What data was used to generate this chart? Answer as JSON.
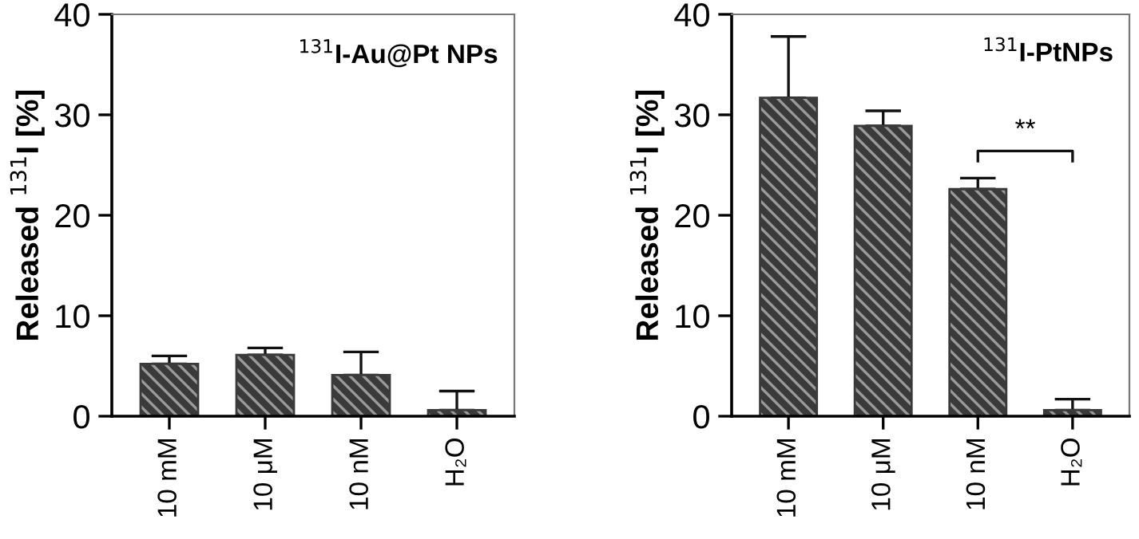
{
  "chart_data": [
    {
      "type": "bar",
      "title": "$^{131}$I-Au@Pt NPs",
      "ylabel": "Released $^{131}$I [%]",
      "categories": [
        "10 mM",
        "10 μM",
        "10 nM",
        "H₂O"
      ],
      "values": [
        5.2,
        6.1,
        4.1,
        0.6
      ],
      "errors": [
        [
          5.2,
          6.0
        ],
        [
          6.1,
          6.8
        ],
        [
          4.1,
          6.4
        ],
        [
          0.6,
          2.5
        ]
      ],
      "color": "#3a3a3a",
      "ylim": [
        0,
        40
      ],
      "yticks": [
        0,
        10,
        20,
        30,
        40
      ],
      "grid": false
    },
    {
      "type": "bar",
      "title": "$^{131}$I-PtNPs",
      "ylabel": "Released $^{131}$I [%]",
      "categories": [
        "10 mM",
        "10 μM",
        "10 nM",
        "H₂O"
      ],
      "values": [
        31.7,
        28.9,
        22.6,
        0.6
      ],
      "errors": [
        [
          31.7,
          37.8
        ],
        [
          28.9,
          30.4
        ],
        [
          22.6,
          23.7
        ],
        [
          0.6,
          1.7
        ]
      ],
      "color": "#3a3a3a",
      "ylim": [
        0,
        40
      ],
      "yticks": [
        0,
        10,
        20,
        30,
        40
      ],
      "grid": false,
      "annotations": [
        "**"
      ]
    }
  ]
}
